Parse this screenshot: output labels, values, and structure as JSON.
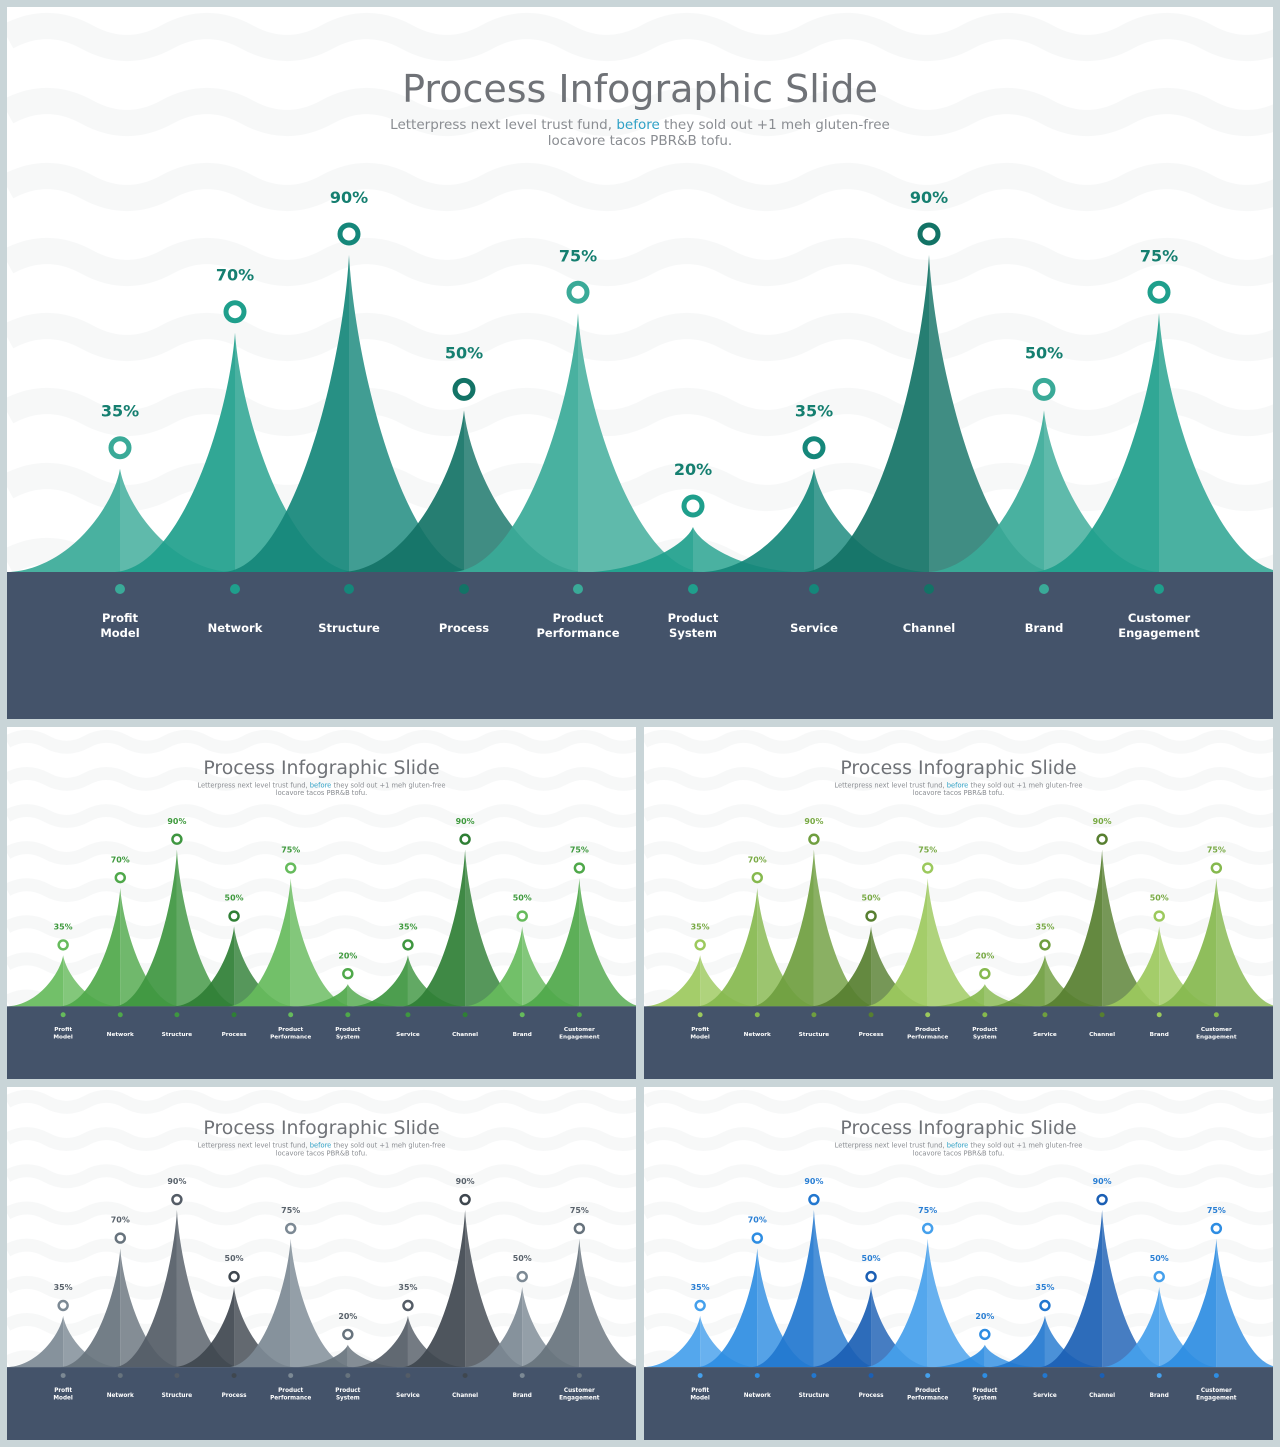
{
  "slide": {
    "title": "Process Infographic Slide",
    "subtitle_pre": "Letterpress next level trust fund, ",
    "subtitle_highlight": "before",
    "subtitle_post": " they sold out +1 meh gluten-free",
    "subtitle_line2": "locavore tacos PBR&B tofu."
  },
  "colors": {
    "page_bg": "#c9d5d8",
    "band": "#44536a",
    "highlight": "#2fa1c6"
  },
  "themes": [
    {
      "name": "teal",
      "shades": [
        "#3aaa98",
        "#1f9f8c",
        "#15877a",
        "#137366"
      ],
      "label": "#157f70"
    },
    {
      "name": "green",
      "shades": [
        "#66bb5c",
        "#4fa84a",
        "#3e9640",
        "#2f7f35"
      ],
      "label": "#3f9a3e"
    },
    {
      "name": "lime",
      "shades": [
        "#9cc95d",
        "#86b94e",
        "#6f9e3f",
        "#577f30"
      ],
      "label": "#79aa45"
    },
    {
      "name": "gray",
      "shades": [
        "#7c8994",
        "#67737d",
        "#545c66",
        "#3f474f"
      ],
      "label": "#5a636c"
    },
    {
      "name": "blue",
      "shades": [
        "#45a0ec",
        "#2e8de2",
        "#2277cf",
        "#1b5fb4"
      ],
      "label": "#2a7fd4"
    }
  ],
  "chart_data": {
    "type": "area",
    "title": "Process Infographic Slide",
    "categories": [
      "Profit Model",
      "Network",
      "Structure",
      "Process",
      "Product Performance",
      "Product System",
      "Service",
      "Channel",
      "Brand",
      "Customer Engagement"
    ],
    "category_lines": [
      [
        "Profit",
        "Model"
      ],
      [
        "Network"
      ],
      [
        "Structure"
      ],
      [
        "Process"
      ],
      [
        "Product",
        "Performance"
      ],
      [
        "Product",
        "System"
      ],
      [
        "Service"
      ],
      [
        "Channel"
      ],
      [
        "Brand"
      ],
      [
        "Customer",
        "Engagement"
      ]
    ],
    "values": [
      35,
      70,
      90,
      50,
      75,
      20,
      35,
      90,
      50,
      75
    ],
    "labels": [
      "35%",
      "70%",
      "90%",
      "50%",
      "75%",
      "20%",
      "35%",
      "90%",
      "50%",
      "75%"
    ],
    "ylim": [
      0,
      100
    ]
  }
}
